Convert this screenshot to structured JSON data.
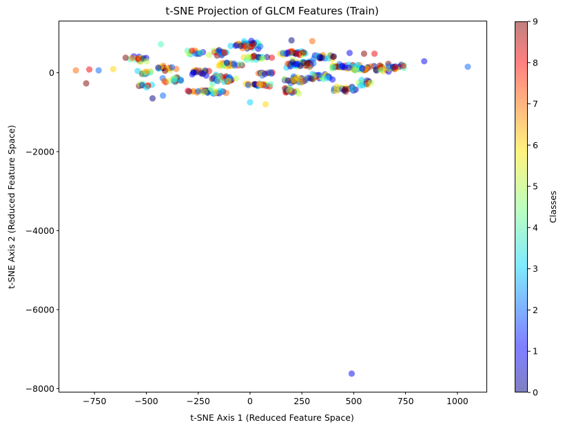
{
  "chart_data": {
    "type": "scatter",
    "title": "t-SNE Projection of GLCM Features (Train)",
    "xlabel": "t-SNE Axis 1 (Reduced Feature Space)",
    "ylabel": "t-SNE Axis 2 (Reduced Feature Space)",
    "xlim": [
      -920,
      1140
    ],
    "ylim": [
      -8080,
      1300
    ],
    "xticks": [
      -750,
      -500,
      -250,
      0,
      250,
      500,
      750,
      1000
    ],
    "xtick_labels": [
      "−750",
      "−500",
      "−250",
      "0",
      "250",
      "500",
      "750",
      "1000"
    ],
    "yticks": [
      -8000,
      -6000,
      -4000,
      -2000,
      0
    ],
    "ytick_labels": [
      "−8000",
      "−6000",
      "−4000",
      "−2000",
      "0"
    ],
    "grid": false,
    "colormap": "jet",
    "alpha": 0.5,
    "colorbar": {
      "label": "Classes",
      "range": [
        0,
        9
      ],
      "ticks": [
        0,
        1,
        2,
        3,
        4,
        5,
        6,
        7,
        8,
        9
      ],
      "tick_labels": [
        "0",
        "1",
        "2",
        "3",
        "4",
        "5",
        "6",
        "7",
        "8",
        "9"
      ]
    },
    "points": [
      {
        "x": 490,
        "y": -7620,
        "c": 1
      },
      {
        "x": 1050,
        "y": 150,
        "c": 2
      },
      {
        "x": 840,
        "y": 290,
        "c": 1
      },
      {
        "x": -840,
        "y": 60,
        "c": 7
      },
      {
        "x": -790,
        "y": -270,
        "c": 9
      },
      {
        "x": -775,
        "y": 80,
        "c": 8
      },
      {
        "x": -730,
        "y": 60,
        "c": 2
      },
      {
        "x": -660,
        "y": 90,
        "c": 6
      },
      {
        "x": -600,
        "y": 380,
        "c": 9
      },
      {
        "x": -430,
        "y": 720,
        "c": 4
      },
      {
        "x": -470,
        "y": -650,
        "c": 0
      },
      {
        "x": -420,
        "y": -580,
        "c": 2
      },
      {
        "x": 75,
        "y": -800,
        "c": 6
      },
      {
        "x": 0,
        "y": -750,
        "c": 3
      },
      {
        "x": 480,
        "y": 500,
        "c": 1
      },
      {
        "x": 550,
        "y": 480,
        "c": 9
      },
      {
        "x": 600,
        "y": 480,
        "c": 8
      },
      {
        "x": 300,
        "y": 800,
        "c": 7
      },
      {
        "x": 200,
        "y": 820,
        "c": 0
      }
    ],
    "clusters": [
      {
        "x": -540,
        "y": 350,
        "sx": 40,
        "sy": 60,
        "n": 18
      },
      {
        "x": -500,
        "y": 0,
        "sx": 35,
        "sy": 60,
        "n": 10
      },
      {
        "x": -510,
        "y": -330,
        "sx": 35,
        "sy": 40,
        "n": 10
      },
      {
        "x": -400,
        "y": 100,
        "sx": 40,
        "sy": 80,
        "n": 14
      },
      {
        "x": -360,
        "y": -180,
        "sx": 50,
        "sy": 60,
        "n": 18
      },
      {
        "x": -260,
        "y": 500,
        "sx": 40,
        "sy": 60,
        "n": 14
      },
      {
        "x": -250,
        "y": 0,
        "sx": 50,
        "sy": 60,
        "n": 18
      },
      {
        "x": -200,
        "y": -470,
        "sx": 70,
        "sy": 50,
        "n": 30
      },
      {
        "x": -150,
        "y": 520,
        "sx": 50,
        "sy": 70,
        "n": 20
      },
      {
        "x": -120,
        "y": -150,
        "sx": 70,
        "sy": 90,
        "n": 30
      },
      {
        "x": -100,
        "y": 200,
        "sx": 60,
        "sy": 60,
        "n": 20
      },
      {
        "x": -10,
        "y": 700,
        "sx": 60,
        "sy": 80,
        "n": 40
      },
      {
        "x": 30,
        "y": 380,
        "sx": 60,
        "sy": 60,
        "n": 20
      },
      {
        "x": 40,
        "y": -300,
        "sx": 60,
        "sy": 50,
        "n": 24
      },
      {
        "x": 70,
        "y": 0,
        "sx": 40,
        "sy": 60,
        "n": 12
      },
      {
        "x": 180,
        "y": -450,
        "sx": 50,
        "sy": 60,
        "n": 20
      },
      {
        "x": 200,
        "y": 500,
        "sx": 60,
        "sy": 50,
        "n": 30
      },
      {
        "x": 230,
        "y": 200,
        "sx": 80,
        "sy": 100,
        "n": 40
      },
      {
        "x": 220,
        "y": -180,
        "sx": 70,
        "sy": 80,
        "n": 30
      },
      {
        "x": 350,
        "y": 400,
        "sx": 50,
        "sy": 60,
        "n": 20
      },
      {
        "x": 350,
        "y": -100,
        "sx": 60,
        "sy": 70,
        "n": 20
      },
      {
        "x": 440,
        "y": 150,
        "sx": 60,
        "sy": 60,
        "n": 25
      },
      {
        "x": 450,
        "y": -420,
        "sx": 50,
        "sy": 60,
        "n": 20
      },
      {
        "x": 530,
        "y": 100,
        "sx": 50,
        "sy": 70,
        "n": 25
      },
      {
        "x": 560,
        "y": -250,
        "sx": 40,
        "sy": 80,
        "n": 16
      },
      {
        "x": 650,
        "y": 120,
        "sx": 50,
        "sy": 80,
        "n": 25
      },
      {
        "x": 710,
        "y": 150,
        "sx": 30,
        "sy": 40,
        "n": 10
      }
    ]
  }
}
